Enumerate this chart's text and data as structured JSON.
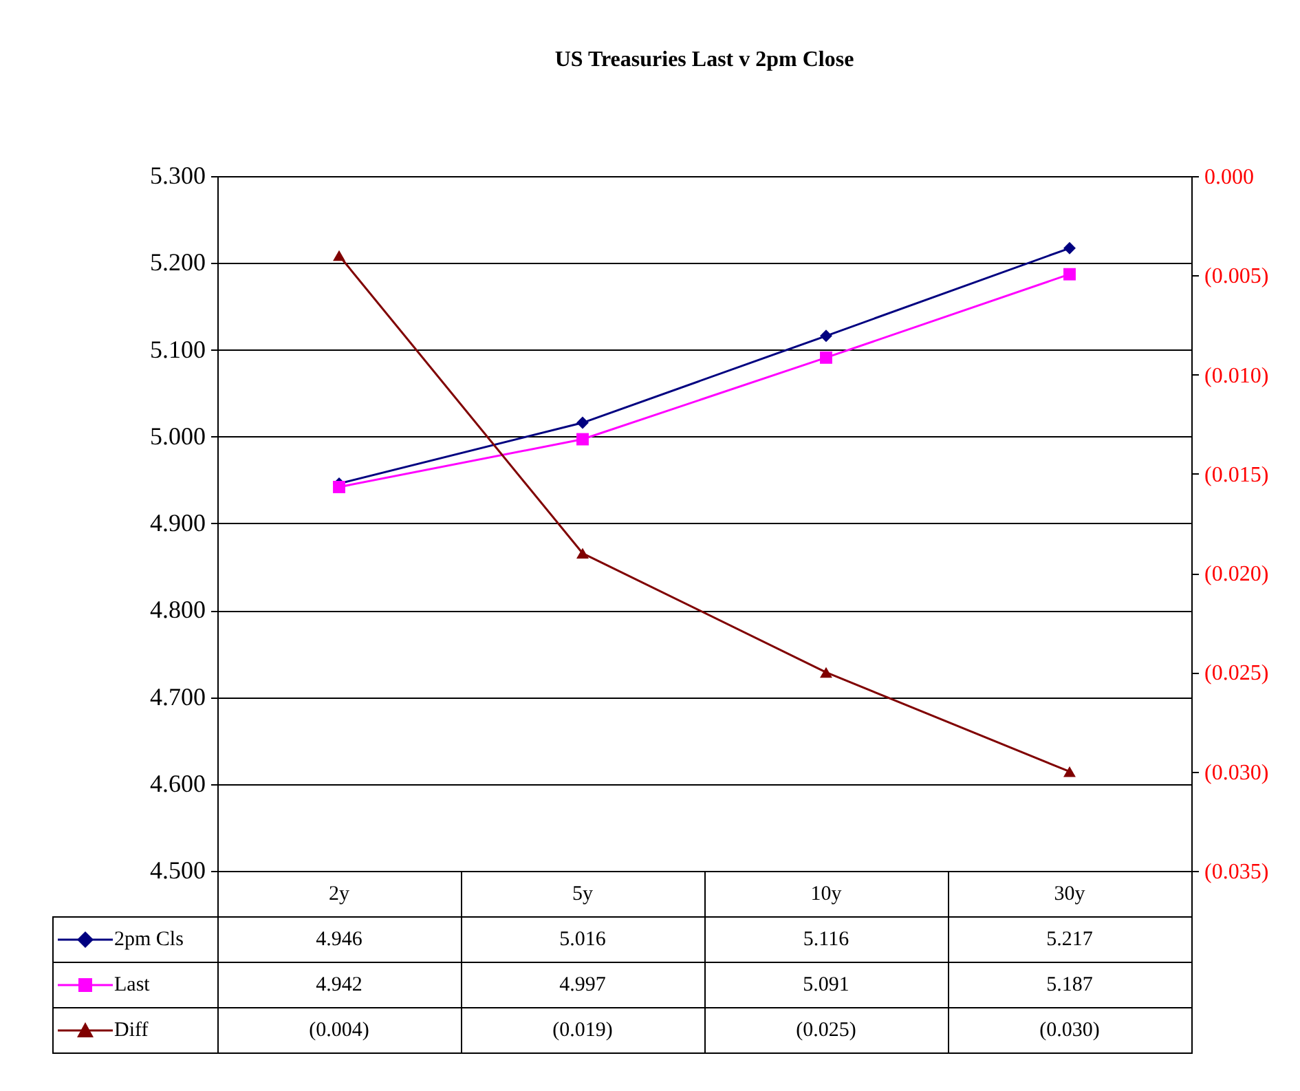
{
  "chart_data": {
    "type": "line",
    "title": "US Treasuries Last v 2pm Close",
    "categories": [
      "2y",
      "5y",
      "10y",
      "30y"
    ],
    "series": [
      {
        "name": "2pm Cls",
        "color": "#000080",
        "marker": "diamond",
        "values": [
          4.946,
          5.016,
          5.116,
          5.217
        ],
        "value_labels": [
          "4.946",
          "5.016",
          "5.116",
          "5.217"
        ]
      },
      {
        "name": "Last",
        "color": "#ff00ff",
        "marker": "square",
        "values": [
          4.942,
          4.997,
          5.091,
          5.187
        ],
        "value_labels": [
          "4.942",
          "4.997",
          "5.091",
          "5.187"
        ]
      },
      {
        "name": "Diff",
        "color": "#800000",
        "marker": "triangle",
        "axis": "y2",
        "values": [
          -0.004,
          -0.019,
          -0.025,
          -0.03
        ],
        "value_labels": [
          "(0.004)",
          "(0.019)",
          "(0.025)",
          "(0.030)"
        ]
      }
    ],
    "ylim": [
      4.5,
      5.3
    ],
    "yticks": [
      {
        "value": 4.5,
        "label": "4.500"
      },
      {
        "value": 4.6,
        "label": "4.600"
      },
      {
        "value": 4.7,
        "label": "4.700"
      },
      {
        "value": 4.8,
        "label": "4.800"
      },
      {
        "value": 4.9,
        "label": "4.900"
      },
      {
        "value": 5.0,
        "label": "5.000"
      },
      {
        "value": 5.1,
        "label": "5.100"
      },
      {
        "value": 5.2,
        "label": "5.200"
      },
      {
        "value": 5.3,
        "label": "5.300"
      }
    ],
    "y2lim": [
      -0.035,
      0
    ],
    "y2ticks": [
      {
        "value": 0,
        "label": "0.000"
      },
      {
        "value": -0.005,
        "label": "(0.005)"
      },
      {
        "value": -0.01,
        "label": "(0.010)"
      },
      {
        "value": -0.015,
        "label": "(0.015)"
      },
      {
        "value": -0.02,
        "label": "(0.020)"
      },
      {
        "value": -0.025,
        "label": "(0.025)"
      },
      {
        "value": -0.03,
        "label": "(0.030)"
      },
      {
        "value": -0.035,
        "label": "(0.035)"
      }
    ],
    "grid": "y",
    "legend": "bottom"
  }
}
